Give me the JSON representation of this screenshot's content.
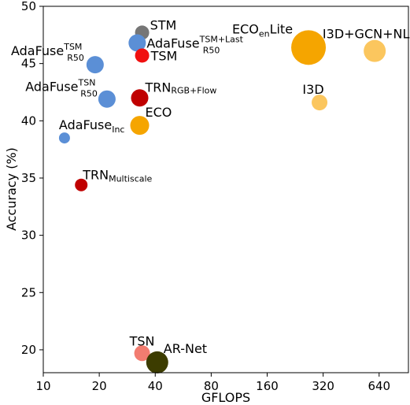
{
  "chart_data": {
    "type": "scatter",
    "title": "",
    "xlabel": "GFLOPS",
    "ylabel": "Accuracy (%)",
    "x_scale": "log2",
    "xlim": [
      10,
      920
    ],
    "ylim": [
      18,
      50
    ],
    "x_ticks": [
      10,
      20,
      40,
      80,
      160,
      320,
      640
    ],
    "y_ticks": [
      20,
      25,
      30,
      35,
      40,
      45,
      50
    ],
    "grid": false,
    "legend": "none",
    "points": [
      {
        "label": "STM",
        "sub": "",
        "sup": "",
        "x": 34,
        "y": 47.7,
        "size": 9,
        "color": "#767676"
      },
      {
        "label": "AdaFuse",
        "sub": "R50",
        "sup": "TSM+Last",
        "x": 32,
        "y": 46.8,
        "size": 11,
        "color": "#5b8fd6"
      },
      {
        "label": "TSM",
        "sub": "",
        "sup": "",
        "x": 34,
        "y": 45.7,
        "size": 9,
        "color": "#f01010"
      },
      {
        "label": "AdaFuse",
        "sub": "R50",
        "sup": "TSM",
        "x": 19,
        "y": 44.9,
        "size": 11,
        "color": "#5b8fd6"
      },
      {
        "label": "AdaFuse",
        "sub": "R50",
        "sup": "TSN",
        "x": 22,
        "y": 41.9,
        "size": 11,
        "color": "#5b8fd6"
      },
      {
        "label": "TRN",
        "sub": "RGB+Flow",
        "sup": "",
        "x": 33,
        "y": 42.0,
        "size": 11,
        "color": "#c00000"
      },
      {
        "label": "ECO",
        "sub": "",
        "sup": "",
        "x": 33,
        "y": 39.6,
        "size": 12,
        "color": "#f5a500"
      },
      {
        "label": "AdaFuse",
        "sub": "Inc",
        "sup": "",
        "x": 13,
        "y": 38.5,
        "size": 7,
        "color": "#5b8fd6"
      },
      {
        "label": "TRN",
        "sub": "Multiscale",
        "sup": "",
        "x": 16,
        "y": 34.4,
        "size": 8,
        "color": "#c00000"
      },
      {
        "label": "ECO",
        "sub": "en",
        "sup": "",
        "suffix": "Lite",
        "x": 267,
        "y": 46.4,
        "size": 22,
        "color": "#f5a500"
      },
      {
        "label": "I3D+GCN+NL",
        "sub": "",
        "sup": "",
        "x": 606,
        "y": 46.1,
        "size": 14,
        "color": "#fbc65e"
      },
      {
        "label": "I3D",
        "sub": "",
        "sup": "",
        "x": 306,
        "y": 41.6,
        "size": 10,
        "color": "#fbc65e"
      },
      {
        "label": "TSN",
        "sub": "",
        "sup": "",
        "x": 34,
        "y": 19.7,
        "size": 10,
        "color": "#f27c70"
      },
      {
        "label": "AR-Net",
        "sub": "",
        "sup": "",
        "x": 41,
        "y": 18.9,
        "size": 14,
        "color": "#3c3c00"
      }
    ]
  }
}
